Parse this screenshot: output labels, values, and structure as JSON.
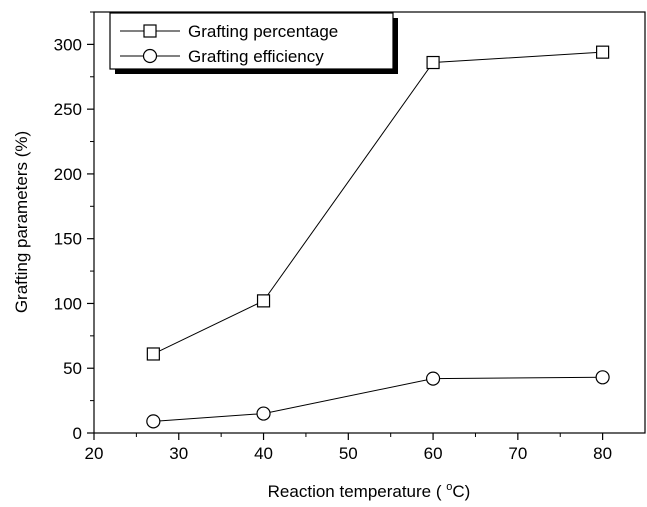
{
  "chart_data": {
    "type": "line",
    "xlabel": "Reaction temperature ( °C)",
    "xlabel_parts": {
      "before": "Reaction temperature ( ",
      "sup": "o",
      "after": "C)"
    },
    "ylabel": "Grafting parameters (%)",
    "xlim": [
      20,
      85
    ],
    "ylim": [
      0,
      325
    ],
    "x_ticks": [
      20,
      30,
      40,
      50,
      60,
      70,
      80
    ],
    "y_ticks": [
      0,
      50,
      100,
      150,
      200,
      250,
      300
    ],
    "grid": false,
    "legend_position": "top-left",
    "series": [
      {
        "name": "Grafting percentage",
        "marker": "square",
        "x": [
          27,
          40,
          60,
          80
        ],
        "y": [
          61,
          102,
          286,
          294
        ]
      },
      {
        "name": "Grafting efficiency",
        "marker": "circle",
        "x": [
          27,
          40,
          60,
          80
        ],
        "y": [
          9,
          15,
          42,
          43
        ]
      }
    ]
  }
}
